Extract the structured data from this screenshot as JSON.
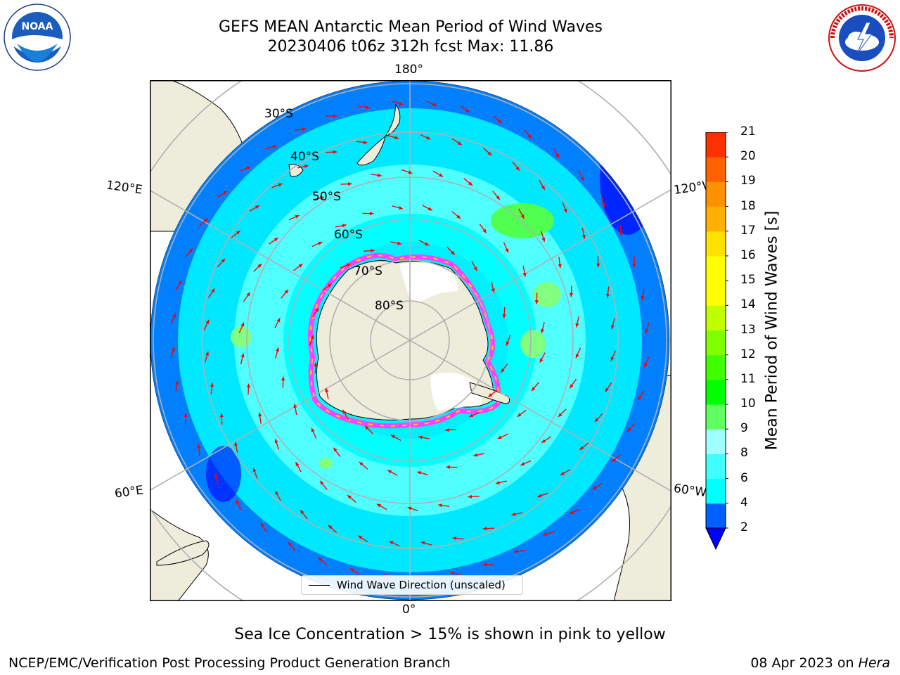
{
  "header": {
    "title_line1": "GEFS MEAN Antarctic Mean Period of Wind Waves",
    "title_line2": "20230406 t06z 312h fcst   Max: 11.86"
  },
  "logos": {
    "left": "NOAA",
    "left_ring_text": "NATIONAL OCEANIC AND ATMOSPHERIC ADMINISTRATION · U.S. DEPARTMENT OF COMMERCE",
    "right_ring_text": "NATIONAL WEATHER SERVICE"
  },
  "map": {
    "longitude_labels": {
      "top": "180°",
      "bottom": "0°",
      "left_upper": "120°E",
      "right_upper": "120°W",
      "left_lower": "60°E",
      "right_lower": "60°W"
    },
    "latitude_labels": [
      "30°S",
      "40°S",
      "50°S",
      "60°S",
      "70°S",
      "80°S"
    ],
    "legend": "Wind Wave Direction (unscaled)"
  },
  "colorbar": {
    "label": "Mean Period of Wind Waves [s]",
    "ticks": [
      "2",
      "4",
      "6",
      "8",
      "9",
      "10",
      "11",
      "12",
      "13",
      "14",
      "15",
      "16",
      "17",
      "18",
      "19",
      "20",
      "21"
    ],
    "colors": [
      "#0060ff",
      "#00ffff",
      "#40ffff",
      "#a0ffff",
      "#60ff60",
      "#00ff00",
      "#40ff00",
      "#80ff00",
      "#c0ff00",
      "#ffff00",
      "#ffff00",
      "#ffe000",
      "#ffb000",
      "#ff9000",
      "#ff6000",
      "#ff3000",
      "#ff0000"
    ],
    "under_color": "#0000ff"
  },
  "subtitle": "Sea Ice Concentration > 15% is shown in pink to yellow",
  "footer": {
    "left": "NCEP/EMC/Verification Post Processing Product Generation Branch",
    "right_date": "08 Apr 2023 on ",
    "right_machine": "Hera"
  },
  "colors": {
    "land": "#eeeddc",
    "ocean_light": "#00ffff",
    "ocean_dark": "#0080ff",
    "arrow": "#ff0000",
    "grid": "#b0b0b0"
  }
}
